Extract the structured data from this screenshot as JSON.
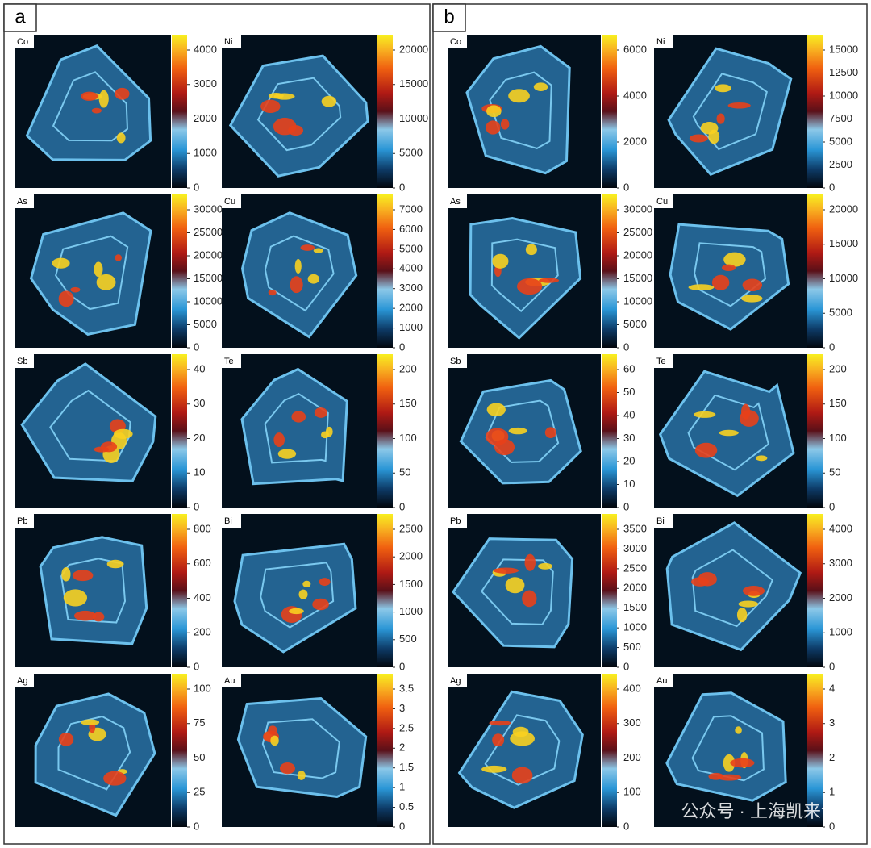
{
  "panels": [
    {
      "label": "a",
      "maps": [
        {
          "element": "Co",
          "ticks": [
            0,
            1000,
            2000,
            3000,
            4000
          ]
        },
        {
          "element": "Ni",
          "ticks": [
            0,
            5000,
            10000,
            15000,
            20000
          ]
        },
        {
          "element": "As",
          "ticks": [
            0,
            5000,
            10000,
            15000,
            20000,
            25000,
            30000
          ]
        },
        {
          "element": "Cu",
          "ticks": [
            0,
            1000,
            2000,
            3000,
            4000,
            5000,
            6000,
            7000
          ]
        },
        {
          "element": "Sb",
          "ticks": [
            0,
            10,
            20,
            30,
            40
          ]
        },
        {
          "element": "Te",
          "ticks": [
            0,
            50,
            100,
            150,
            200
          ]
        },
        {
          "element": "Pb",
          "ticks": [
            0,
            200,
            400,
            600,
            800
          ]
        },
        {
          "element": "Bi",
          "ticks": [
            0,
            500,
            1000,
            1500,
            2000,
            2500
          ]
        },
        {
          "element": "Ag",
          "ticks": [
            0,
            25,
            50,
            75,
            100
          ]
        },
        {
          "element": "Au",
          "ticks": [
            0,
            0.5,
            1,
            1.5,
            2,
            2.5,
            3,
            3.5
          ]
        }
      ]
    },
    {
      "label": "b",
      "maps": [
        {
          "element": "Co",
          "ticks": [
            0,
            2000,
            4000,
            6000
          ]
        },
        {
          "element": "Ni",
          "ticks": [
            0,
            2500,
            5000,
            7500,
            10000,
            12500,
            15000
          ]
        },
        {
          "element": "As",
          "ticks": [
            0,
            5000,
            10000,
            15000,
            20000,
            25000,
            30000
          ]
        },
        {
          "element": "Cu",
          "ticks": [
            0,
            5000,
            10000,
            15000,
            20000
          ]
        },
        {
          "element": "Sb",
          "ticks": [
            0,
            10,
            20,
            30,
            40,
            50,
            60
          ]
        },
        {
          "element": "Te",
          "ticks": [
            0,
            50,
            100,
            150,
            200
          ]
        },
        {
          "element": "Pb",
          "ticks": [
            0,
            500,
            1000,
            1500,
            2000,
            2500,
            3000,
            3500
          ]
        },
        {
          "element": "Bi",
          "ticks": [
            0,
            1000,
            2000,
            3000,
            4000
          ]
        },
        {
          "element": "Ag",
          "ticks": [
            0,
            100,
            200,
            300,
            400
          ]
        },
        {
          "element": "Au",
          "ticks": [
            0,
            1,
            2,
            3,
            4
          ]
        }
      ]
    }
  ],
  "watermark": "公众号 · 上海凯来谱"
}
